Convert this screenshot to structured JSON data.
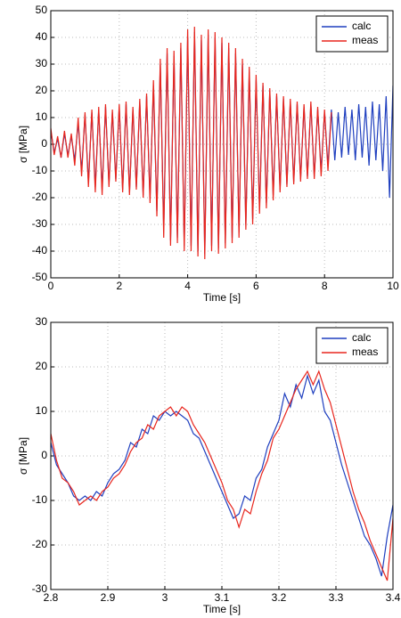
{
  "chart_data": [
    {
      "type": "line",
      "xlabel": "Time [s]",
      "ylabel": "σ [MPa]",
      "x": [
        0,
        0.1,
        0.2,
        0.3,
        0.4,
        0.5,
        0.6,
        0.7,
        0.8,
        0.9,
        1,
        1.1,
        1.2,
        1.3,
        1.4,
        1.5,
        1.6,
        1.7,
        1.8,
        1.9,
        2,
        2.1,
        2.2,
        2.3,
        2.4,
        2.5,
        2.6,
        2.7,
        2.8,
        2.9,
        3,
        3.1,
        3.2,
        3.3,
        3.4,
        3.5,
        3.6,
        3.7,
        3.8,
        3.9,
        4,
        4.1,
        4.2,
        4.3,
        4.4,
        4.5,
        4.6,
        4.7,
        4.8,
        4.9,
        5,
        5.1,
        5.2,
        5.3,
        5.4,
        5.5,
        5.6,
        5.7,
        5.8,
        5.9,
        6,
        6.1,
        6.2,
        6.3,
        6.4,
        6.5,
        6.6,
        6.7,
        6.8,
        6.9,
        7,
        7.1,
        7.2,
        7.3,
        7.4,
        7.5,
        7.6,
        7.7,
        7.8,
        7.9,
        8,
        8.1,
        8.2,
        8.3,
        8.4,
        8.5,
        8.6,
        8.7,
        8.8,
        8.9,
        9,
        9.1,
        9.2,
        9.3,
        9.4,
        9.5,
        9.6,
        9.7,
        9.8,
        9.9,
        10
      ],
      "series": [
        {
          "name": "calc",
          "color": "#1f3fbf",
          "values": [
            5,
            -3,
            2,
            -5,
            4,
            -4,
            3,
            -6,
            8,
            -10,
            11,
            -14,
            12,
            -16,
            13,
            -17,
            14,
            -15,
            12,
            -13,
            14,
            -17,
            15,
            -18,
            13,
            -16,
            16,
            -19,
            18,
            -20,
            22,
            -25,
            30,
            -32,
            34,
            -36,
            33,
            -35,
            36,
            -38,
            40,
            -38,
            42,
            -40,
            39,
            -41,
            41,
            -38,
            40,
            -39,
            38,
            -37,
            36,
            -35,
            34,
            -33,
            30,
            -30,
            27,
            -28,
            24,
            -24,
            22,
            -22,
            20,
            -19,
            18,
            -17,
            17,
            -15,
            16,
            -14,
            15,
            -13,
            14,
            -12,
            15,
            -12,
            13,
            -10,
            12,
            -8,
            13,
            -6,
            12,
            -5,
            14,
            -4,
            13,
            -6,
            15,
            -5,
            14,
            -8,
            16,
            -6,
            15,
            -10,
            18,
            -20,
            22
          ]
        },
        {
          "name": "meas",
          "color": "#e8261e",
          "values": [
            6,
            -4,
            3,
            -5,
            5,
            -5,
            4,
            -8,
            10,
            -12,
            12,
            -16,
            13,
            -18,
            14,
            -19,
            15,
            -16,
            13,
            -14,
            15,
            -18,
            16,
            -19,
            14,
            -17,
            17,
            -20,
            19,
            -22,
            24,
            -27,
            32,
            -35,
            36,
            -38,
            35,
            -37,
            38,
            -40,
            43,
            -40,
            44,
            -42,
            41,
            -43,
            43,
            -40,
            42,
            -41,
            40,
            -39,
            38,
            -37,
            36,
            -35,
            32,
            -32,
            29,
            -30,
            26,
            -26,
            23,
            -24,
            21,
            -21,
            19,
            -18,
            18,
            -16,
            17,
            -15,
            16,
            -14,
            15,
            -13,
            16,
            -13,
            14,
            -12,
            13,
            -10,
            12,
            null,
            null,
            null,
            null,
            null,
            null,
            null,
            null,
            null,
            null,
            null,
            null,
            null,
            null,
            null,
            null,
            null,
            null
          ]
        }
      ],
      "xlim": [
        0,
        10
      ],
      "ylim": [
        -50,
        50
      ],
      "xticks": [
        0,
        2,
        4,
        6,
        8,
        10
      ],
      "yticks": [
        -50,
        -40,
        -30,
        -20,
        -10,
        0,
        10,
        20,
        30,
        40,
        50
      ],
      "grid": true,
      "legend": "upper right"
    },
    {
      "type": "line",
      "xlabel": "Time [s]",
      "ylabel": "σ [MPa]",
      "x": [
        2.8,
        2.81,
        2.82,
        2.83,
        2.84,
        2.85,
        2.86,
        2.87,
        2.88,
        2.89,
        2.9,
        2.91,
        2.92,
        2.93,
        2.94,
        2.95,
        2.96,
        2.97,
        2.98,
        2.99,
        3,
        3.01,
        3.02,
        3.03,
        3.04,
        3.05,
        3.06,
        3.07,
        3.08,
        3.09,
        3.1,
        3.11,
        3.12,
        3.13,
        3.14,
        3.15,
        3.16,
        3.17,
        3.18,
        3.19,
        3.2,
        3.21,
        3.22,
        3.23,
        3.24,
        3.25,
        3.26,
        3.27,
        3.28,
        3.29,
        3.3,
        3.31,
        3.32,
        3.33,
        3.34,
        3.35,
        3.36,
        3.37,
        3.38,
        3.39,
        3.4
      ],
      "series": [
        {
          "name": "calc",
          "color": "#1f3fbf",
          "values": [
            3,
            -2,
            -4,
            -6,
            -9,
            -10,
            -9,
            -10,
            -8,
            -9,
            -6,
            -4,
            -3,
            -1,
            3,
            2,
            6,
            5,
            9,
            8,
            10,
            9,
            10,
            9,
            8,
            5,
            4,
            1,
            -2,
            -5,
            -8,
            -11,
            -14,
            -13,
            -9,
            -10,
            -5,
            -3,
            2,
            5,
            8,
            14,
            11,
            16,
            13,
            18,
            14,
            17,
            10,
            8,
            3,
            -2,
            -6,
            -10,
            -14,
            -18,
            -20,
            -23,
            -27,
            -18,
            -11
          ]
        },
        {
          "name": "meas",
          "color": "#e8261e",
          "values": [
            5,
            -1,
            -5,
            -6,
            -8,
            -11,
            -10,
            -9,
            -10,
            -8,
            -7,
            -5,
            -4,
            -2,
            1,
            3,
            4,
            7,
            6,
            9,
            10,
            11,
            9,
            11,
            10,
            7,
            5,
            3,
            0,
            -3,
            -6,
            -10,
            -12,
            -16,
            -12,
            -13,
            -8,
            -4,
            -1,
            4,
            6,
            9,
            12,
            15,
            17,
            19,
            16,
            19,
            15,
            12,
            7,
            2,
            -3,
            -8,
            -12,
            -15,
            -19,
            -22,
            -25,
            -28,
            -14
          ]
        }
      ],
      "xlim": [
        2.8,
        3.4
      ],
      "ylim": [
        -30,
        30
      ],
      "xticks": [
        2.8,
        2.9,
        3,
        3.1,
        3.2,
        3.3,
        3.4
      ],
      "yticks": [
        -30,
        -20,
        -10,
        0,
        10,
        20,
        30
      ],
      "grid": true,
      "legend": "upper right"
    }
  ]
}
